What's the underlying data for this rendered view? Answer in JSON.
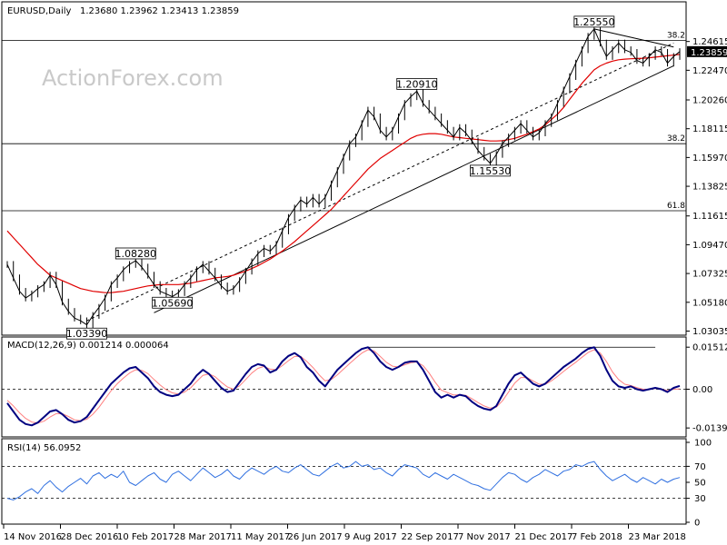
{
  "header": {
    "symbol": "EURUSD,Daily",
    "ohlc": "1.23680 1.23962 1.23413 1.23859",
    "macd": "MACD(12,26,9) 0.001214 0.000064",
    "rsi": "RSI(14) 56.0952"
  },
  "watermark": "ActionForex.com",
  "colors": {
    "price": "#000000",
    "sma": "#e00000",
    "macd": "#000080",
    "signal": "#ff8080",
    "rsi": "#3070e0",
    "line": "#000000",
    "current_box": "#000000"
  },
  "chart_data": [
    {
      "type": "line",
      "pane": "price",
      "ylim": [
        1.03,
        1.273
      ],
      "y_ticks": [
        "1.24615",
        "1.22470",
        "1.20260",
        "1.18115",
        "1.15970",
        "1.13825",
        "1.11615",
        "1.09470",
        "1.07325",
        "1.05180",
        "1.03035"
      ],
      "y_tick_values": [
        1.24615,
        1.2247,
        1.2026,
        1.18115,
        1.1597,
        1.13825,
        1.11615,
        1.0947,
        1.07325,
        1.0518,
        1.03035
      ],
      "x_labels": [
        "14 Nov 2016",
        "28 Dec 2016",
        "10 Feb 2017",
        "28 Mar 2017",
        "11 May 2017",
        "26 Jun 2017",
        "9 Aug 2017",
        "22 Sep 2017",
        "7 Nov 2017",
        "21 Dec 2017",
        "7 Feb 2018",
        "23 Mar 2018"
      ],
      "current_price": "1.23859",
      "current_value": 1.23859,
      "series": [
        {
          "name": "price",
          "values": [
            1.08,
            1.07,
            1.06,
            1.055,
            1.058,
            1.062,
            1.065,
            1.072,
            1.065,
            1.052,
            1.045,
            1.04,
            1.038,
            1.035,
            1.042,
            1.048,
            1.055,
            1.065,
            1.07,
            1.076,
            1.08,
            1.0828,
            1.078,
            1.072,
            1.065,
            1.06,
            1.058,
            1.056,
            1.059,
            1.065,
            1.07,
            1.076,
            1.08,
            1.075,
            1.07,
            1.064,
            1.06,
            1.062,
            1.068,
            1.075,
            1.082,
            1.088,
            1.092,
            1.09,
            1.095,
            1.105,
            1.115,
            1.122,
            1.128,
            1.125,
            1.13,
            1.125,
            1.13,
            1.14,
            1.15,
            1.16,
            1.17,
            1.175,
            1.185,
            1.195,
            1.19,
            1.18,
            1.175,
            1.18,
            1.19,
            1.2,
            1.205,
            1.2091,
            1.2,
            1.195,
            1.19,
            1.185,
            1.18,
            1.175,
            1.182,
            1.178,
            1.172,
            1.165,
            1.16,
            1.1553,
            1.162,
            1.17,
            1.175,
            1.18,
            1.185,
            1.18,
            1.175,
            1.178,
            1.185,
            1.19,
            1.2,
            1.21,
            1.22,
            1.23,
            1.24,
            1.25,
            1.2555,
            1.245,
            1.235,
            1.24,
            1.245,
            1.24,
            1.238,
            1.232,
            1.23,
            1.235,
            1.24,
            1.238,
            1.23,
            1.235,
            1.2386
          ]
        },
        {
          "name": "sma",
          "values": [
            1.105,
            1.1,
            1.095,
            1.09,
            1.085,
            1.08,
            1.076,
            1.072,
            1.07,
            1.068,
            1.066,
            1.064,
            1.062,
            1.061,
            1.06,
            1.0595,
            1.059,
            1.059,
            1.0595,
            1.06,
            1.061,
            1.062,
            1.063,
            1.064,
            1.0645,
            1.065,
            1.065,
            1.065,
            1.065,
            1.0655,
            1.066,
            1.067,
            1.068,
            1.069,
            1.07,
            1.0705,
            1.071,
            1.072,
            1.0735,
            1.075,
            1.077,
            1.079,
            1.0815,
            1.084,
            1.087,
            1.09,
            1.0935,
            1.097,
            1.101,
            1.105,
            1.109,
            1.113,
            1.117,
            1.121,
            1.126,
            1.131,
            1.136,
            1.141,
            1.146,
            1.151,
            1.155,
            1.159,
            1.162,
            1.165,
            1.168,
            1.171,
            1.174,
            1.176,
            1.177,
            1.1775,
            1.1775,
            1.177,
            1.176,
            1.175,
            1.1745,
            1.174,
            1.1735,
            1.173,
            1.1725,
            1.172,
            1.172,
            1.1722,
            1.173,
            1.174,
            1.1755,
            1.177,
            1.179,
            1.181,
            1.184,
            1.188,
            1.192,
            1.197,
            1.203,
            1.209,
            1.215,
            1.22,
            1.225,
            1.228,
            1.23,
            1.2315,
            1.2325,
            1.233,
            1.2333,
            1.2335,
            1.2337,
            1.234,
            1.2345,
            1.235,
            1.2355,
            1.236,
            1.2365
          ]
        }
      ],
      "levels": [
        {
          "label": "38.2",
          "value": 1.247
        },
        {
          "label": "38.2",
          "value": 1.17
        },
        {
          "label": "61.8",
          "value": 1.12
        }
      ],
      "annotations": [
        {
          "text": "1.25550",
          "x_index": 96,
          "value": 1.2555
        },
        {
          "text": "1.20910",
          "x_index": 67,
          "value": 1.2091
        },
        {
          "text": "1.15530",
          "x_index": 79,
          "value": 1.1553
        },
        {
          "text": "1.08280",
          "x_index": 21,
          "value": 1.0828
        },
        {
          "text": "1.05690",
          "x_index": 27,
          "value": 1.0569
        },
        {
          "text": "1.03390",
          "x_index": 13,
          "value": 1.0339
        }
      ],
      "trendlines": [
        {
          "from_index": 24,
          "from_value": 1.044,
          "to_index": 109,
          "to_value": 1.228
        },
        {
          "from_index": 13,
          "from_value": 1.038,
          "to_index": 109,
          "to_value": 1.245,
          "dashed": true
        },
        {
          "from_index": 96,
          "from_value": 1.2555,
          "to_index": 109,
          "to_value": 1.242
        }
      ]
    },
    {
      "type": "line",
      "pane": "macd",
      "ylim": [
        -0.0165,
        0.0178
      ],
      "y_ticks": [
        "0.01512",
        "0.00",
        "-0.013938"
      ],
      "y_tick_values": [
        0.01512,
        0.0,
        -0.013938
      ],
      "series": [
        {
          "name": "MACD",
          "values": [
            -0.005,
            -0.008,
            -0.011,
            -0.0125,
            -0.013,
            -0.012,
            -0.01,
            -0.008,
            -0.0075,
            -0.009,
            -0.011,
            -0.012,
            -0.0115,
            -0.01,
            -0.007,
            -0.004,
            -0.001,
            0.002,
            0.004,
            0.006,
            0.0075,
            0.008,
            0.006,
            0.004,
            0.001,
            -0.001,
            -0.002,
            -0.0025,
            -0.002,
            0.0,
            0.002,
            0.005,
            0.007,
            0.0055,
            0.003,
            0.0005,
            -0.001,
            -0.0005,
            0.0025,
            0.0055,
            0.008,
            0.009,
            0.0085,
            0.006,
            0.007,
            0.01,
            0.012,
            0.013,
            0.0115,
            0.008,
            0.006,
            0.003,
            0.001,
            0.004,
            0.007,
            0.009,
            0.011,
            0.013,
            0.0145,
            0.0151,
            0.013,
            0.01,
            0.008,
            0.007,
            0.008,
            0.0095,
            0.01,
            0.01,
            0.007,
            0.003,
            -0.001,
            -0.003,
            -0.002,
            -0.003,
            -0.002,
            -0.0025,
            -0.0045,
            -0.006,
            -0.007,
            -0.0075,
            -0.006,
            -0.002,
            0.002,
            0.005,
            0.006,
            0.004,
            0.002,
            0.001,
            0.002,
            0.004,
            0.006,
            0.008,
            0.0095,
            0.011,
            0.013,
            0.0145,
            0.0151,
            0.012,
            0.007,
            0.003,
            0.001,
            0.0005,
            0.001,
            0.0,
            -0.0005,
            0.0,
            0.0005,
            0.0,
            -0.001,
            0.0005,
            0.0012
          ]
        },
        {
          "name": "Signal",
          "values": [
            -0.004,
            -0.006,
            -0.0085,
            -0.0105,
            -0.0118,
            -0.0122,
            -0.0115,
            -0.01,
            -0.0088,
            -0.0088,
            -0.0098,
            -0.011,
            -0.0113,
            -0.0108,
            -0.009,
            -0.0065,
            -0.0035,
            -0.0005,
            0.002,
            0.004,
            0.0058,
            0.007,
            0.0068,
            0.0056,
            0.0035,
            0.0015,
            -0.0002,
            -0.0013,
            -0.0017,
            -0.001,
            0.0005,
            0.0028,
            0.005,
            0.0055,
            0.0045,
            0.0025,
            0.0008,
            0.0,
            0.0012,
            0.0035,
            0.0058,
            0.0075,
            0.0082,
            0.0072,
            0.007,
            0.0085,
            0.0103,
            0.0118,
            0.0118,
            0.01,
            0.0078,
            0.0052,
            0.003,
            0.0035,
            0.0052,
            0.0072,
            0.0092,
            0.0112,
            0.013,
            0.0142,
            0.0138,
            0.0118,
            0.0097,
            0.0083,
            0.008,
            0.0088,
            0.0095,
            0.0098,
            0.0085,
            0.0058,
            0.0025,
            -0.0003,
            -0.0012,
            -0.0021,
            -0.002,
            -0.0022,
            -0.0034,
            -0.0048,
            -0.006,
            -0.0068,
            -0.0064,
            -0.0042,
            -0.001,
            0.0022,
            0.0042,
            0.0042,
            0.003,
            0.0018,
            0.0018,
            0.003,
            0.0046,
            0.0064,
            0.0081,
            0.0097,
            0.0115,
            0.0132,
            0.0142,
            0.013,
            0.01,
            0.0062,
            0.0035,
            0.0018,
            0.0013,
            0.0006,
            0.0,
            0.0,
            0.0003,
            0.0001,
            -0.0005,
            0.0,
            0.0001
          ]
        }
      ],
      "reference_lines": [
        {
          "value": 0.0,
          "dashed": true
        },
        {
          "value": 0.0151,
          "from_index": 59,
          "to_index": 106
        }
      ]
    },
    {
      "type": "line",
      "pane": "rsi",
      "ylim": [
        0,
        100
      ],
      "y_ticks": [
        "100",
        "70",
        "50",
        "30",
        "0"
      ],
      "y_tick_values": [
        100,
        70,
        50,
        30,
        0
      ],
      "series": [
        {
          "name": "RSI",
          "values": [
            30,
            28,
            32,
            38,
            42,
            36,
            46,
            52,
            44,
            38,
            45,
            50,
            55,
            48,
            58,
            62,
            55,
            60,
            56,
            64,
            50,
            46,
            52,
            58,
            62,
            54,
            50,
            60,
            64,
            58,
            52,
            60,
            68,
            62,
            56,
            60,
            66,
            58,
            54,
            62,
            68,
            64,
            60,
            66,
            70,
            64,
            62,
            68,
            72,
            66,
            60,
            58,
            64,
            70,
            74,
            68,
            70,
            76,
            70,
            72,
            66,
            68,
            62,
            58,
            66,
            72,
            70,
            68,
            60,
            56,
            62,
            58,
            54,
            60,
            56,
            52,
            48,
            46,
            42,
            40,
            48,
            56,
            62,
            60,
            54,
            50,
            56,
            60,
            66,
            62,
            58,
            64,
            66,
            72,
            70,
            74,
            76,
            66,
            58,
            52,
            56,
            60,
            54,
            50,
            56,
            52,
            48,
            54,
            50,
            54,
            56
          ]
        }
      ],
      "reference_lines": [
        {
          "value": 70,
          "dashed": true
        },
        {
          "value": 30,
          "dashed": true
        }
      ]
    }
  ]
}
